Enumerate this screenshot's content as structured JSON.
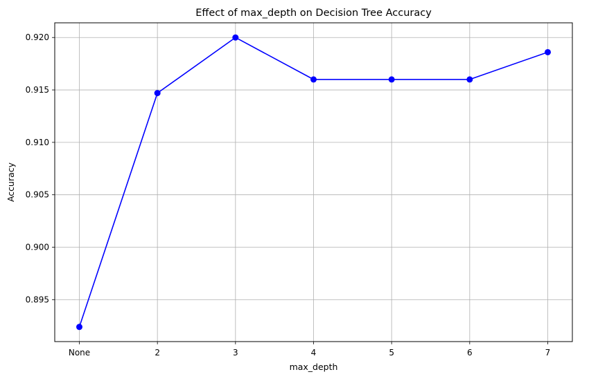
{
  "chart_data": {
    "type": "line",
    "title": "Effect of max_depth on Decision Tree Accuracy",
    "xlabel": "max_depth",
    "ylabel": "Accuracy",
    "categories": [
      "None",
      "2",
      "3",
      "4",
      "5",
      "6",
      "7"
    ],
    "series": [
      {
        "values": [
          0.8924,
          0.9147,
          0.92,
          0.916,
          0.916,
          0.916,
          0.9186
        ],
        "color": "#0000ff",
        "marker": "circle"
      }
    ],
    "ylim": [
      0.891,
      0.9214
    ],
    "yticks": [
      0.895,
      0.9,
      0.905,
      0.91,
      0.915,
      0.92
    ],
    "ytick_labels": [
      "0.895",
      "0.900",
      "0.905",
      "0.910",
      "0.915",
      "0.920"
    ],
    "grid": true,
    "legend": false
  }
}
